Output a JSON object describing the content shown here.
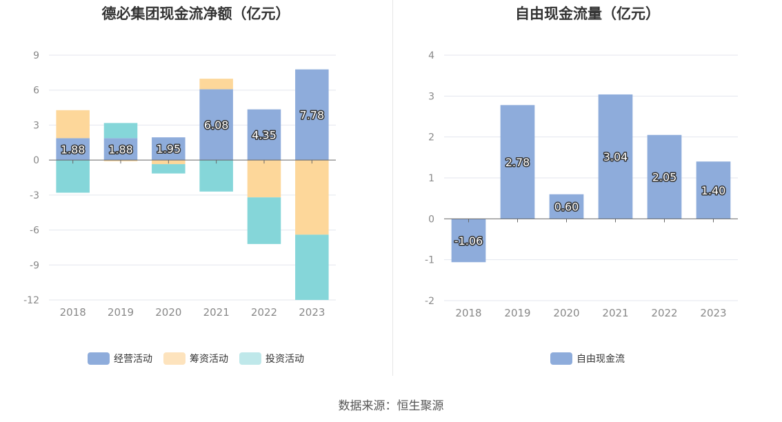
{
  "colors": {
    "operating": "#8eacdb",
    "financing": "#fdd79a",
    "investing": "#85d6d9",
    "free_cash_flow": "#8eacdb",
    "grid": "#e3e6ee",
    "axis": "#666666",
    "tick_text": "#888888"
  },
  "legend_swatch_colors": {
    "operating": "#8eacdb",
    "financing": "#fde3bd",
    "investing": "#bfe8ea",
    "free_cash_flow": "#8eacdb"
  },
  "source_text": "数据来源：恒生聚源",
  "chart_data": [
    {
      "type": "bar",
      "stacked": true,
      "title": "德必集团现金流净额（亿元）",
      "categories": [
        "2018",
        "2019",
        "2020",
        "2021",
        "2022",
        "2023"
      ],
      "ylim": [
        -12,
        9
      ],
      "yticks": [
        9,
        6,
        3,
        0,
        -3,
        -6,
        -9,
        -12
      ],
      "grid": true,
      "legend_position": "bottom",
      "series": [
        {
          "name": "经营活动",
          "key": "operating",
          "values": [
            1.88,
            1.88,
            1.95,
            6.08,
            4.35,
            7.78
          ]
        },
        {
          "name": "筹资活动",
          "key": "financing",
          "values": [
            2.4,
            -0.1,
            -0.35,
            0.9,
            -3.2,
            -6.4
          ]
        },
        {
          "name": "投资活动",
          "key": "investing",
          "values": [
            -2.8,
            1.3,
            -0.8,
            -2.7,
            -4.0,
            -5.6
          ]
        }
      ],
      "data_labels": [
        "1.88",
        "1.88",
        "1.95",
        "6.08",
        "4.35",
        "7.78"
      ]
    },
    {
      "type": "bar",
      "title": "自由现金流量（亿元）",
      "categories": [
        "2018",
        "2019",
        "2020",
        "2021",
        "2022",
        "2023"
      ],
      "ylim": [
        -2,
        4
      ],
      "yticks": [
        4,
        3,
        2,
        1,
        0,
        -1,
        -2
      ],
      "grid": true,
      "legend_position": "bottom",
      "series": [
        {
          "name": "自由现金流",
          "key": "free_cash_flow",
          "values": [
            -1.06,
            2.78,
            0.6,
            3.04,
            2.05,
            1.4
          ]
        }
      ],
      "data_labels": [
        "-1.06",
        "2.78",
        "0.60",
        "3.04",
        "2.05",
        "1.40"
      ]
    }
  ]
}
